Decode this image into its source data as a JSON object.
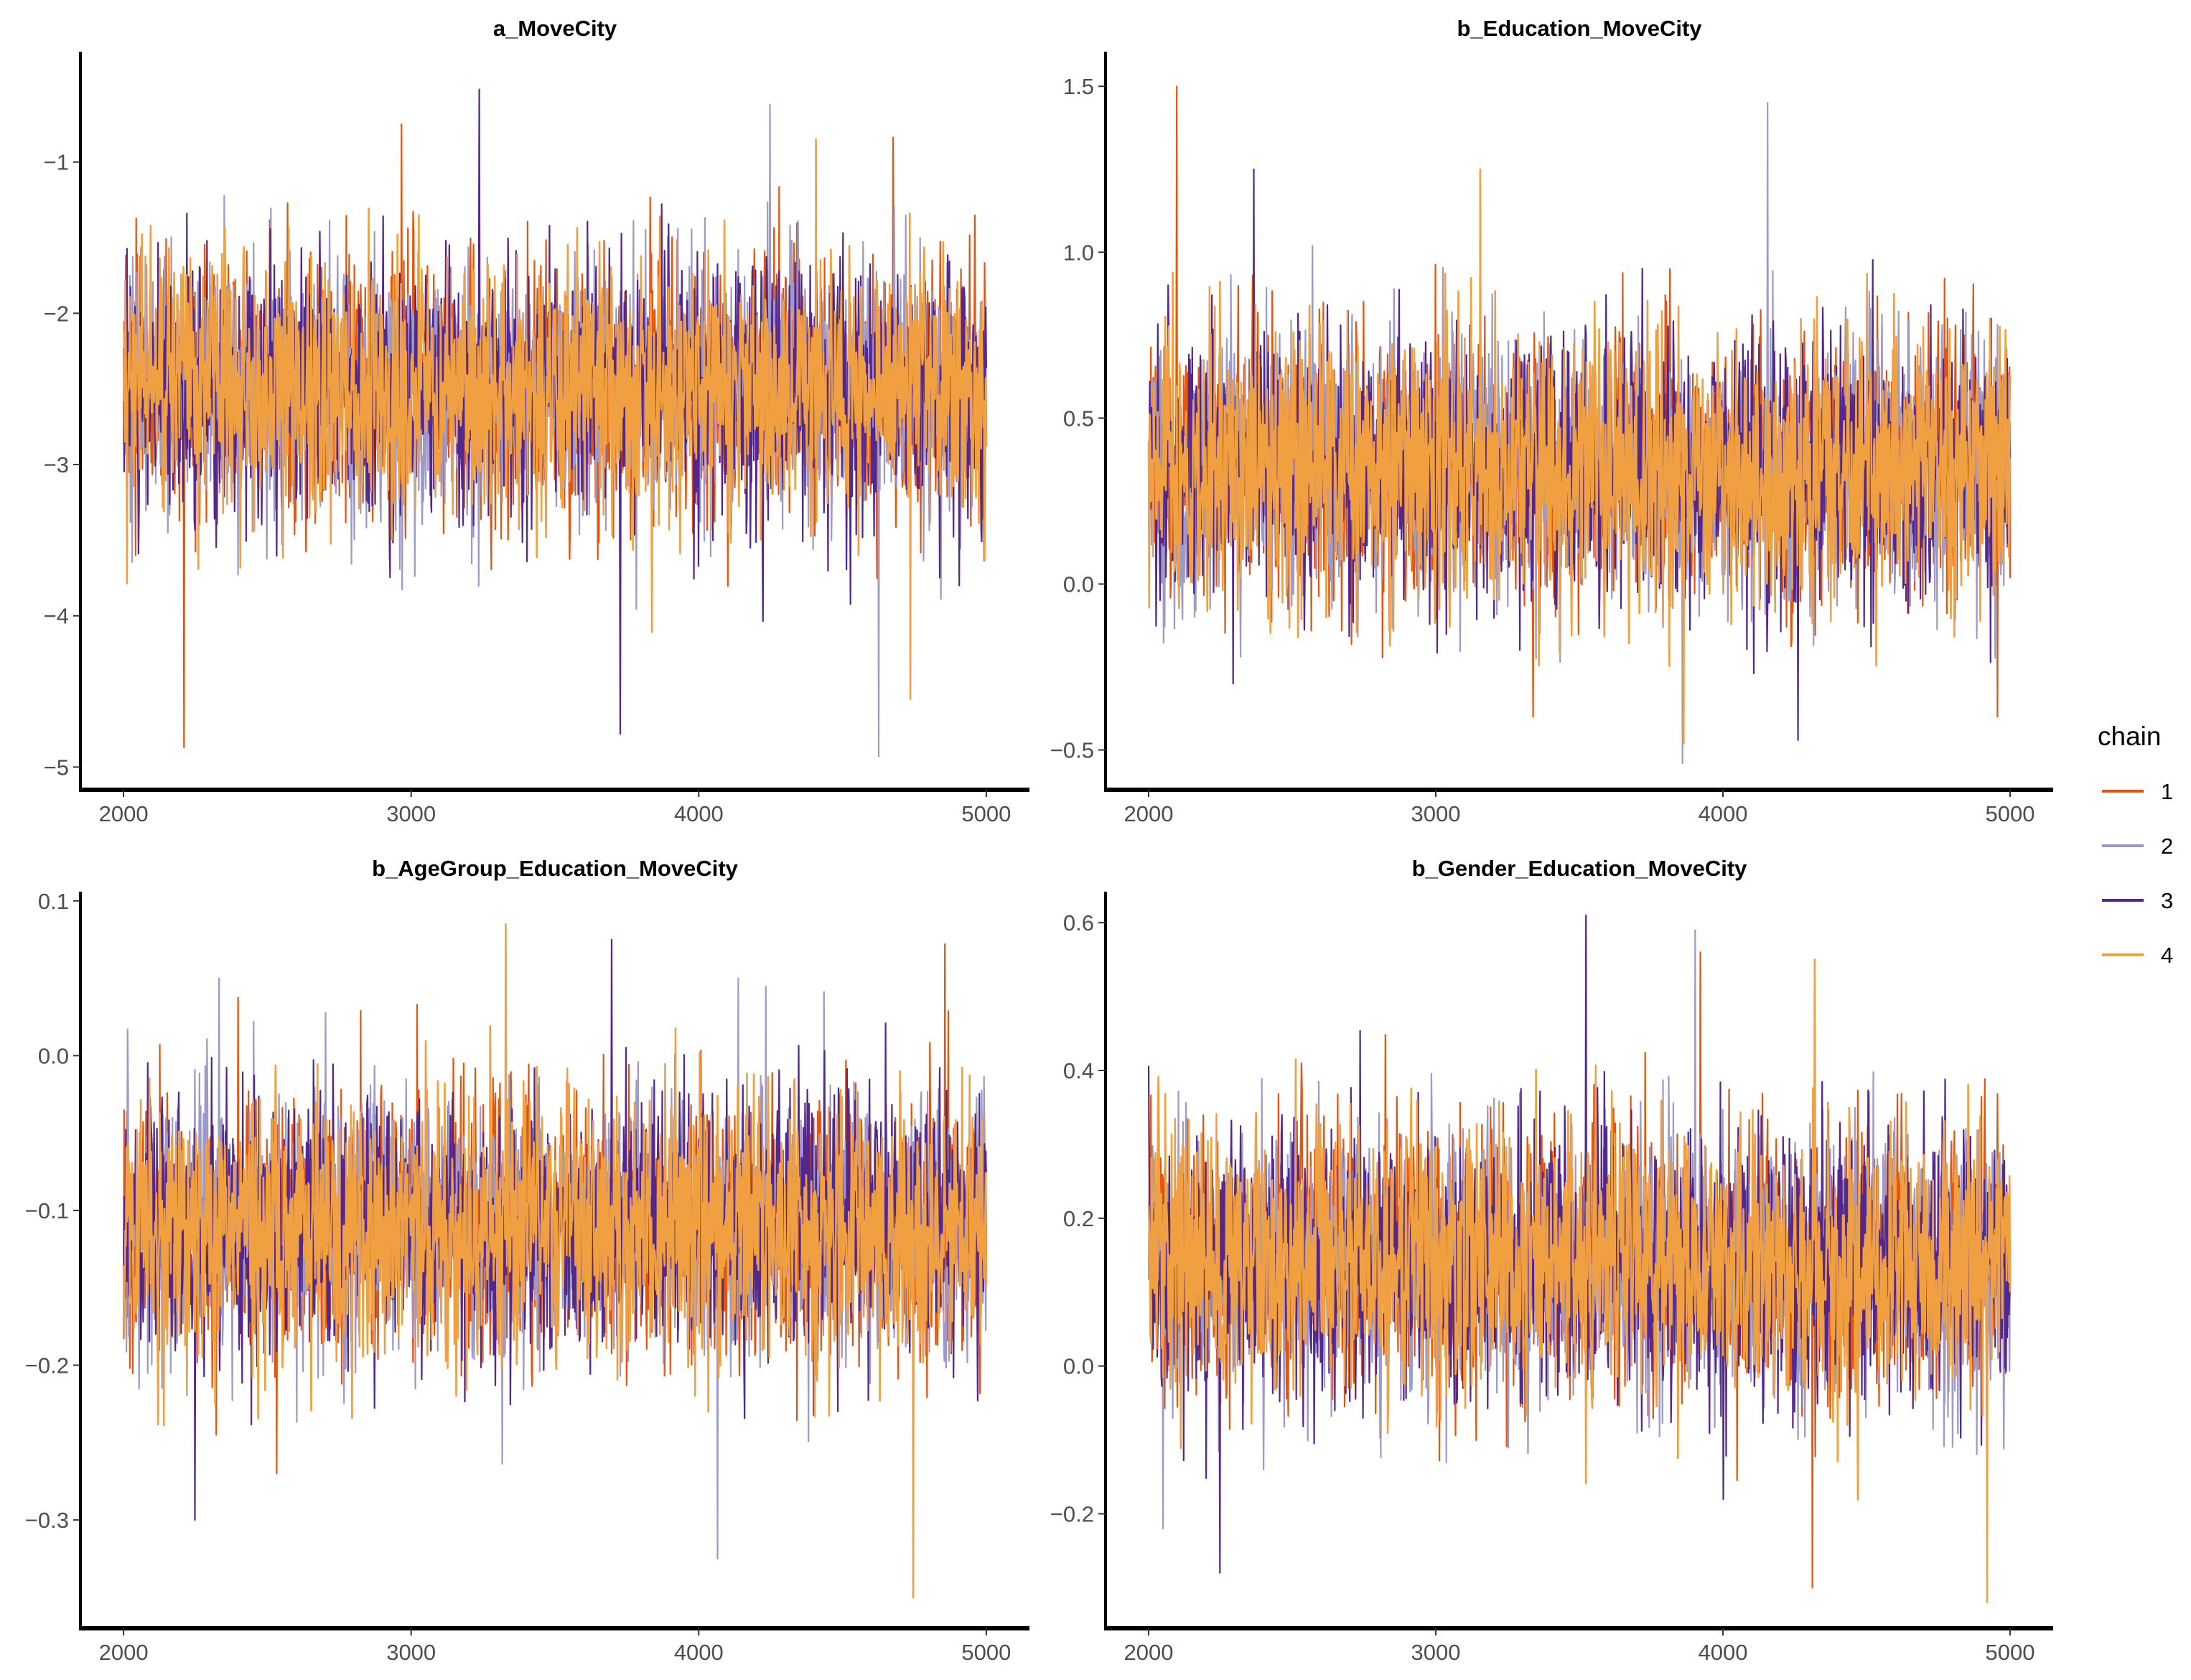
{
  "chart_data": {
    "type": "line",
    "subtype": "mcmc-trace",
    "legend": {
      "title": "chain",
      "position": "right",
      "entries": [
        {
          "label": "1",
          "color": "#e6550d"
        },
        {
          "label": "2",
          "color": "#9e9ac8"
        },
        {
          "label": "3",
          "color": "#54278f"
        },
        {
          "label": "4",
          "color": "#f0a040"
        }
      ]
    },
    "panels": [
      {
        "title": "a_MoveCity",
        "xlim": [
          1850,
          5150
        ],
        "ylim": [
          -5.15,
          -0.28
        ],
        "xticks": [
          2000,
          3000,
          4000,
          5000
        ],
        "yticks": [
          -5,
          -4,
          -3,
          -2,
          -1
        ],
        "ytick_labels": [
          "−5",
          "−4",
          "−3",
          "−2",
          "−1"
        ],
        "x_range": [
          2000,
          5000
        ],
        "series_stats": {
          "center": -2.5,
          "spread": 0.42,
          "min": -4.93,
          "max": -0.52,
          "chain_peaks": [
            {
              "chain": "1",
              "max": -0.75,
              "min": -4.87
            },
            {
              "chain": "2",
              "max": -0.62,
              "min": -4.93
            },
            {
              "chain": "3",
              "max": -0.52,
              "min": -4.78
            },
            {
              "chain": "4",
              "max": -0.85,
              "min": -4.55
            }
          ]
        }
      },
      {
        "title": "b_Education_MoveCity",
        "xlim": [
          1850,
          5150
        ],
        "ylim": [
          -0.62,
          1.6
        ],
        "xticks": [
          2000,
          3000,
          4000,
          5000
        ],
        "yticks": [
          -0.5,
          0.0,
          0.5,
          1.0,
          1.5
        ],
        "ytick_labels": [
          "−0.5",
          "0.0",
          "0.5",
          "1.0",
          "1.5"
        ],
        "x_range": [
          2000,
          5000
        ],
        "series_stats": {
          "center": 0.35,
          "spread": 0.2,
          "min": -0.54,
          "max": 1.5,
          "chain_peaks": [
            {
              "chain": "1",
              "max": 1.5,
              "min": -0.4
            },
            {
              "chain": "2",
              "max": 1.45,
              "min": -0.54
            },
            {
              "chain": "3",
              "max": 1.25,
              "min": -0.47
            },
            {
              "chain": "4",
              "max": 1.25,
              "min": -0.48
            }
          ]
        }
      },
      {
        "title": "b_AgeGroup_Education_MoveCity",
        "xlim": [
          1850,
          5150
        ],
        "ylim": [
          -0.37,
          0.105
        ],
        "xticks": [
          2000,
          3000,
          4000,
          5000
        ],
        "yticks": [
          -0.3,
          -0.2,
          -0.1,
          0.0,
          0.1
        ],
        "ytick_labels": [
          "−0.3",
          "−0.2",
          "−0.1",
          "0.0",
          "0.1"
        ],
        "x_range": [
          2000,
          5000
        ],
        "series_stats": {
          "center": -0.11,
          "spread": 0.042,
          "min": -0.35,
          "max": 0.085,
          "chain_peaks": [
            {
              "chain": "1",
              "max": 0.072,
              "min": -0.27
            },
            {
              "chain": "2",
              "max": 0.05,
              "min": -0.325
            },
            {
              "chain": "3",
              "max": 0.075,
              "min": -0.3
            },
            {
              "chain": "4",
              "max": 0.085,
              "min": -0.35
            }
          ]
        }
      },
      {
        "title": "b_Gender_Education_MoveCity",
        "xlim": [
          1850,
          5150
        ],
        "ylim": [
          -0.355,
          0.64
        ],
        "xticks": [
          2000,
          3000,
          4000,
          5000
        ],
        "yticks": [
          -0.2,
          0.0,
          0.2,
          0.4,
          0.6
        ],
        "ytick_labels": [
          "−0.2",
          "0.0",
          "0.2",
          "0.4",
          "0.6"
        ],
        "x_range": [
          2000,
          5000
        ],
        "series_stats": {
          "center": 0.14,
          "spread": 0.09,
          "min": -0.32,
          "max": 0.61,
          "chain_peaks": [
            {
              "chain": "1",
              "max": 0.56,
              "min": -0.3
            },
            {
              "chain": "2",
              "max": 0.59,
              "min": -0.22
            },
            {
              "chain": "3",
              "max": 0.61,
              "min": -0.28
            },
            {
              "chain": "4",
              "max": 0.55,
              "min": -0.32
            }
          ]
        }
      }
    ]
  }
}
